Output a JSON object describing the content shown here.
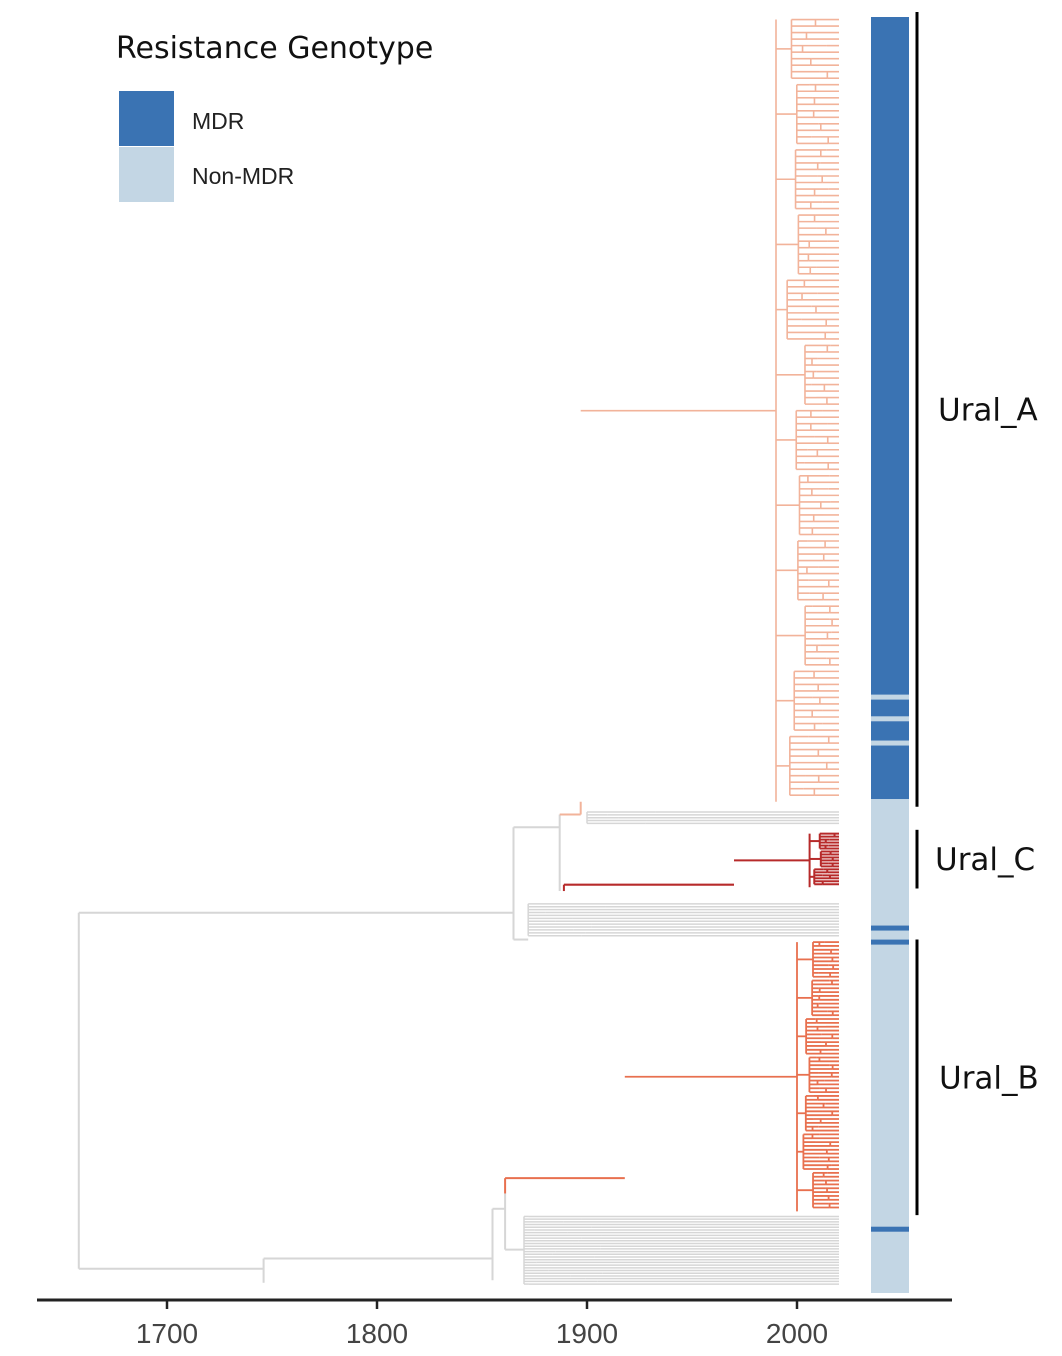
{
  "chart_data": {
    "type": "phylogenetic-tree",
    "x_axis": {
      "ticks": [
        1700,
        1800,
        1900,
        2000
      ],
      "tick_labels": [
        "1700",
        "1800",
        "1900",
        "2000"
      ],
      "range": [
        1640,
        2066
      ]
    },
    "legend": {
      "title": "Resistance Genotype",
      "placement": "top-left",
      "entries": [
        {
          "label": "MDR",
          "color": "#3a73b3"
        },
        {
          "label": "Non-MDR",
          "color": "#c3d6e4"
        }
      ]
    },
    "colors": {
      "background_lineage": "#d6d6d6",
      "Ural_A": "#f2b39a",
      "Ural_B": "#e8704f",
      "Ural_C": "#b72a2a",
      "axis": "#222222"
    },
    "clades": [
      {
        "name": "Ural_A",
        "label": "Ural_A",
        "tip_range_percent": [
          0,
          61.5
        ]
      },
      {
        "name": "Ural_C",
        "label": "Ural_C",
        "tip_range_percent": [
          63.7,
          68.3
        ]
      },
      {
        "name": "Ural_B",
        "label": "Ural_B",
        "tip_range_percent": [
          72.3,
          93.9
        ]
      }
    ],
    "genotype_bar": {
      "segments_percent": [
        {
          "from": 0,
          "to": 61.3,
          "genotype": "MDR"
        },
        {
          "from": 61.3,
          "to": 100,
          "genotype": "Non-MDR"
        }
      ],
      "stripes_percent": [
        {
          "at": 53.3,
          "genotype": "Non-MDR"
        },
        {
          "at": 55.0,
          "genotype": "Non-MDR"
        },
        {
          "at": 56.9,
          "genotype": "Non-MDR"
        },
        {
          "at": 71.4,
          "genotype": "MDR"
        },
        {
          "at": 72.5,
          "genotype": "MDR"
        },
        {
          "at": 95.0,
          "genotype": "MDR"
        }
      ]
    },
    "tree": {
      "root_year": 1658,
      "tip_year": 2020,
      "major_nodes": [
        {
          "year": 1658,
          "clade": "root"
        },
        {
          "year": 1746,
          "clade": "basal"
        },
        {
          "year": 1865,
          "clade": "upper-backbone"
        },
        {
          "year": 1887,
          "clade": "Ural_A/Ural_C ancestor"
        },
        {
          "year": 1889,
          "clade": "Ural_C stem"
        },
        {
          "year": 1861,
          "clade": "Ural_B stem"
        },
        {
          "year": 1887,
          "clade": "Ural_A stem"
        }
      ]
    }
  }
}
